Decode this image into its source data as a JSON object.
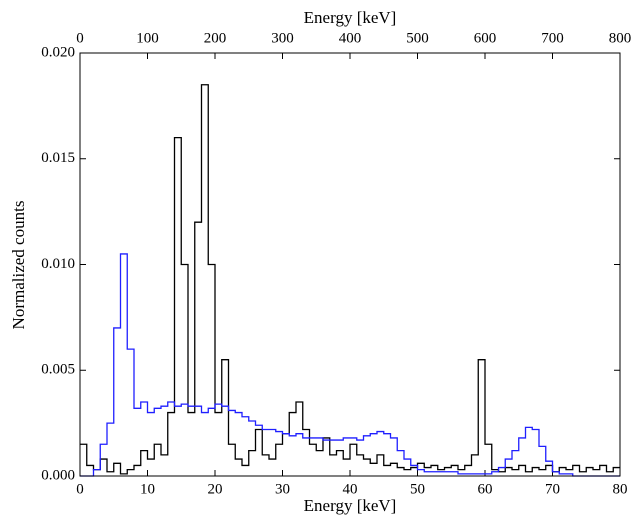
{
  "chart_data": {
    "type": "step",
    "xlabel": "Energy [keV]",
    "x2label": "Energy [keV]",
    "ylabel": "Normalized counts",
    "xlim": [
      0,
      80
    ],
    "xticks": [
      0,
      10,
      20,
      30,
      40,
      50,
      60,
      70,
      80
    ],
    "x2lim": [
      0,
      800
    ],
    "x2ticks": [
      0,
      100,
      200,
      300,
      400,
      500,
      600,
      700,
      800
    ],
    "ylim": [
      0,
      0.02
    ],
    "yticks": [
      {
        "value": 0,
        "label": "0.000"
      },
      {
        "value": 0.005,
        "label": "0.005"
      },
      {
        "value": 0.01,
        "label": "0.010"
      },
      {
        "value": 0.015,
        "label": "0.015"
      },
      {
        "value": 0.02,
        "label": "0.020"
      }
    ],
    "x2color": "#1f1fff",
    "series": [
      {
        "color": "#000000",
        "axis": "x",
        "x": [
          0,
          1,
          2,
          3,
          4,
          5,
          6,
          7,
          8,
          9,
          10,
          11,
          12,
          13,
          14,
          15,
          16,
          17,
          18,
          19,
          20,
          21,
          22,
          23,
          24,
          25,
          26,
          27,
          28,
          29,
          30,
          31,
          32,
          33,
          34,
          35,
          36,
          37,
          38,
          39,
          40,
          41,
          42,
          43,
          44,
          45,
          46,
          47,
          48,
          49,
          50,
          51,
          52,
          53,
          54,
          55,
          56,
          57,
          58,
          59,
          60,
          61,
          62,
          63,
          64,
          65,
          66,
          67,
          68,
          69,
          70,
          71,
          72,
          73,
          74,
          75,
          76,
          77,
          78,
          79
        ],
        "values": [
          0.0015,
          0.0005,
          0.0003,
          0.0008,
          0.0002,
          0.0006,
          0.0001,
          0.0003,
          0.0005,
          0.0012,
          0.0008,
          0.0015,
          0.001,
          0.003,
          0.016,
          0.01,
          0.003,
          0.012,
          0.0185,
          0.01,
          0.003,
          0.0055,
          0.0015,
          0.0008,
          0.0005,
          0.0012,
          0.0022,
          0.001,
          0.0008,
          0.0015,
          0.002,
          0.003,
          0.0035,
          0.0022,
          0.0015,
          0.0012,
          0.0018,
          0.001,
          0.0012,
          0.0008,
          0.0015,
          0.001,
          0.0008,
          0.0006,
          0.001,
          0.0005,
          0.0006,
          0.0004,
          0.0003,
          0.0004,
          0.0006,
          0.0004,
          0.0005,
          0.0003,
          0.0004,
          0.0005,
          0.0003,
          0.0005,
          0.001,
          0.0055,
          0.0015,
          0.0003,
          0.0002,
          0.0004,
          0.0003,
          0.0005,
          0.0002,
          0.0004,
          0.0003,
          0.0005,
          0.0002,
          0.0004,
          0.0003,
          0.0005,
          0.0002,
          0.0004,
          0.0003,
          0.0005,
          0.0002,
          0.0004
        ]
      },
      {
        "color": "#1f1fff",
        "axis": "x2",
        "x": [
          0,
          10,
          20,
          30,
          40,
          50,
          60,
          70,
          80,
          90,
          100,
          110,
          120,
          130,
          140,
          150,
          160,
          170,
          180,
          190,
          200,
          210,
          220,
          230,
          240,
          250,
          260,
          270,
          280,
          290,
          300,
          310,
          320,
          330,
          340,
          350,
          360,
          370,
          380,
          390,
          400,
          410,
          420,
          430,
          440,
          450,
          460,
          470,
          480,
          490,
          500,
          510,
          520,
          530,
          540,
          550,
          560,
          570,
          580,
          590,
          600,
          610,
          620,
          630,
          640,
          650,
          660,
          670,
          680,
          690,
          700,
          710,
          720,
          730,
          740,
          750,
          760,
          770,
          780,
          790
        ],
        "values": [
          0,
          0,
          0.0003,
          0.0015,
          0.0025,
          0.007,
          0.0105,
          0.006,
          0.0032,
          0.0035,
          0.003,
          0.0032,
          0.0033,
          0.0035,
          0.0033,
          0.0034,
          0.0033,
          0.0033,
          0.003,
          0.0032,
          0.0034,
          0.0033,
          0.0031,
          0.003,
          0.0028,
          0.0026,
          0.0024,
          0.0022,
          0.0022,
          0.0021,
          0.002,
          0.0019,
          0.002,
          0.0018,
          0.0018,
          0.0018,
          0.0017,
          0.0017,
          0.0017,
          0.0018,
          0.0018,
          0.0017,
          0.0019,
          0.002,
          0.0021,
          0.002,
          0.0018,
          0.0012,
          0.0008,
          0.0005,
          0.0003,
          0.0002,
          0.0002,
          0.0002,
          0.0002,
          0.0002,
          0.0001,
          0.0001,
          0.0001,
          0.0001,
          0.0001,
          0.0002,
          0.0004,
          0.0008,
          0.0012,
          0.0018,
          0.0023,
          0.0022,
          0.0014,
          0.0007,
          0.0002,
          0.0001,
          0.0001,
          0,
          0,
          0,
          0,
          0,
          0,
          0
        ]
      }
    ]
  }
}
